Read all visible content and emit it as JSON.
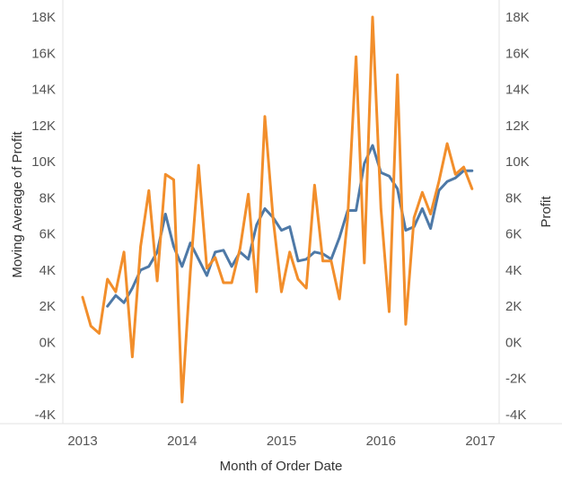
{
  "chart_data": {
    "type": "line",
    "title": "",
    "xlabel": "Month of Order Date",
    "ylabel_left": "Moving Average of Profit",
    "ylabel_right": "Profit",
    "x_ticks": [
      "2013",
      "2014",
      "2015",
      "2016",
      "2017"
    ],
    "y_ticks": [
      "-4K",
      "-2K",
      "0K",
      "2K",
      "4K",
      "6K",
      "8K",
      "10K",
      "12K",
      "14K",
      "16K",
      "18K"
    ],
    "ylim": [
      -4000,
      18000
    ],
    "grid": false,
    "colors": {
      "moving_average": "#4e79a7",
      "profit": "#f28e2b"
    },
    "series": [
      {
        "key": "profit",
        "x": [
          "2013-01",
          "2013-02",
          "2013-03",
          "2013-04",
          "2013-05",
          "2013-06",
          "2013-07",
          "2013-08",
          "2013-09",
          "2013-10",
          "2013-11",
          "2013-12",
          "2014-01",
          "2014-02",
          "2014-03",
          "2014-04",
          "2014-05",
          "2014-06",
          "2014-07",
          "2014-08",
          "2014-09",
          "2014-10",
          "2014-11",
          "2014-12",
          "2015-01",
          "2015-02",
          "2015-03",
          "2015-04",
          "2015-05",
          "2015-06",
          "2015-07",
          "2015-08",
          "2015-09",
          "2015-10",
          "2015-11",
          "2015-12",
          "2016-01",
          "2016-02",
          "2016-03",
          "2016-04",
          "2016-05",
          "2016-06",
          "2016-07",
          "2016-08",
          "2016-09",
          "2016-10",
          "2016-11",
          "2016-12"
        ],
        "values": [
          2500,
          900,
          500,
          3500,
          2800,
          5000,
          -800,
          5300,
          8400,
          3400,
          9300,
          9000,
          -3300,
          3900,
          9800,
          4100,
          4700,
          3300,
          3300,
          5200,
          8200,
          2800,
          12500,
          6800,
          2800,
          5000,
          3500,
          3000,
          8700,
          4500,
          4500,
          2400,
          6900,
          15800,
          4400,
          18000,
          7400,
          1700,
          14800,
          1000,
          6900,
          8300,
          7100,
          8900,
          11000,
          9300,
          9700,
          8500
        ]
      },
      {
        "key": "moving_average",
        "x": [
          "2013-04",
          "2013-05",
          "2013-06",
          "2013-07",
          "2013-08",
          "2013-09",
          "2013-10",
          "2013-11",
          "2013-12",
          "2014-01",
          "2014-02",
          "2014-03",
          "2014-04",
          "2014-05",
          "2014-06",
          "2014-07",
          "2014-08",
          "2014-09",
          "2014-10",
          "2014-11",
          "2014-12",
          "2015-01",
          "2015-02",
          "2015-03",
          "2015-04",
          "2015-05",
          "2015-06",
          "2015-07",
          "2015-08",
          "2015-09",
          "2015-10",
          "2015-11",
          "2015-12",
          "2016-01",
          "2016-02",
          "2016-03",
          "2016-04",
          "2016-05",
          "2016-06",
          "2016-07",
          "2016-08",
          "2016-09",
          "2016-10",
          "2016-11",
          "2016-12"
        ],
        "values": [
          2000,
          2600,
          2200,
          3000,
          4000,
          4200,
          5000,
          7100,
          5300,
          4200,
          5500,
          4600,
          3700,
          5000,
          5100,
          4200,
          5000,
          4600,
          6500,
          7400,
          6900,
          6200,
          6400,
          4500,
          4600,
          5000,
          4900,
          4600,
          5800,
          7300,
          7300,
          9900,
          10900,
          9400,
          9200,
          8500,
          6200,
          6400,
          7400,
          6300,
          8400,
          8900,
          9100,
          9500,
          9500
        ]
      }
    ]
  }
}
